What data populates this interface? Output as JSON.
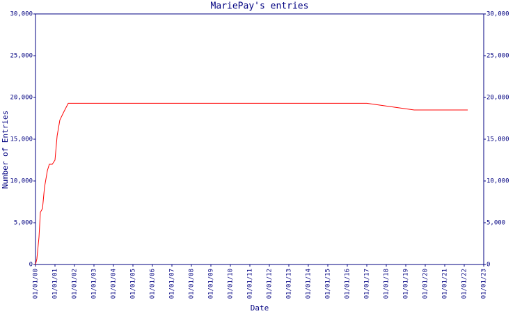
{
  "chart_data": {
    "type": "line",
    "title": "MariePay's entries",
    "x_label": "Date",
    "y_label": "Number of Entries",
    "x": [
      0,
      0.07,
      0.18,
      0.25,
      0.36,
      0.46,
      0.61,
      0.71,
      0.86,
      1.0,
      1.11,
      1.25,
      1.46,
      1.68,
      17.0,
      19.43,
      22.18
    ],
    "series": [
      {
        "color": "#ff0000",
        "values": [
          0,
          670,
          3300,
          6250,
          6700,
          9200,
          11250,
          12000,
          12000,
          12500,
          15400,
          17300,
          18300,
          19300,
          19300,
          18500,
          18500
        ]
      }
    ],
    "xlim": [
      0,
      23
    ],
    "xticks": [
      {
        "value": 0,
        "label": "01/01/00"
      },
      {
        "value": 1,
        "label": "01/01/01"
      },
      {
        "value": 2,
        "label": "01/01/02"
      },
      {
        "value": 3,
        "label": "01/01/03"
      },
      {
        "value": 4,
        "label": "01/01/04"
      },
      {
        "value": 5,
        "label": "01/01/05"
      },
      {
        "value": 6,
        "label": "01/01/06"
      },
      {
        "value": 7,
        "label": "01/01/07"
      },
      {
        "value": 8,
        "label": "01/01/08"
      },
      {
        "value": 9,
        "label": "01/01/09"
      },
      {
        "value": 10,
        "label": "01/01/10"
      },
      {
        "value": 11,
        "label": "01/01/11"
      },
      {
        "value": 12,
        "label": "01/01/12"
      },
      {
        "value": 13,
        "label": "01/01/13"
      },
      {
        "value": 14,
        "label": "01/01/14"
      },
      {
        "value": 15,
        "label": "01/01/15"
      },
      {
        "value": 16,
        "label": "01/01/16"
      },
      {
        "value": 17,
        "label": "01/01/17"
      },
      {
        "value": 18,
        "label": "01/01/18"
      },
      {
        "value": 19,
        "label": "01/01/19"
      },
      {
        "value": 20,
        "label": "01/01/20"
      },
      {
        "value": 21,
        "label": "01/01/21"
      },
      {
        "value": 22,
        "label": "01/01/22"
      },
      {
        "value": 23,
        "label": "01/01/23"
      }
    ],
    "ylim": [
      0,
      30000
    ],
    "yticks": [
      0,
      {
        "value": 5000,
        "label": "5,000"
      },
      {
        "value": 10000,
        "label": "10,000"
      },
      {
        "value": 15000,
        "label": "15,000"
      },
      {
        "value": 20000,
        "label": "20,000"
      },
      {
        "value": 25000,
        "label": "25,000"
      },
      {
        "value": 30000,
        "label": "30,000"
      }
    ],
    "axis_color": "#000080"
  }
}
